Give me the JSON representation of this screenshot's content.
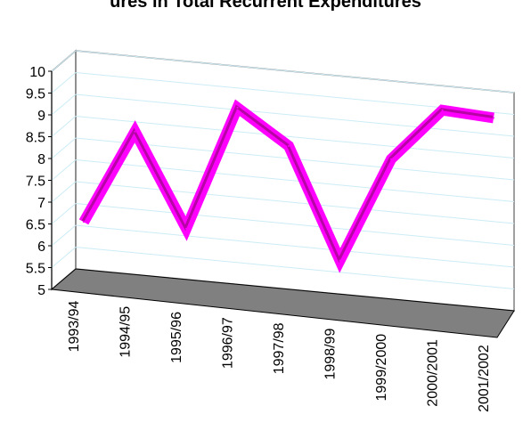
{
  "chart_data": {
    "type": "line",
    "title": "ures in Total Recurrent Expenditures",
    "xlabel": "",
    "ylabel": "",
    "categories": [
      "1993/94",
      "1994/95",
      "1995/96",
      "1996/97",
      "1997/98",
      "1998/99",
      "1999/2000",
      "2000/2001",
      "2001/2002"
    ],
    "series": [
      {
        "values": [
          6.4,
          8.6,
          6.5,
          9.4,
          8.65,
          6.15,
          8.6,
          9.85,
          9.8
        ]
      }
    ],
    "ylim": [
      5,
      10
    ],
    "yticks": [
      "5",
      "5.5",
      "6",
      "6.5",
      "7",
      "7.5",
      "8",
      "8.5",
      "9",
      "9.5",
      "10"
    ],
    "grid": true,
    "three_d": true,
    "legend": "none",
    "colors": {
      "line": "#ff00ff",
      "line_shadow": "#7a0a5a",
      "gridline": "#ccecf6",
      "floor": "#808080",
      "axis": "#808080"
    }
  }
}
